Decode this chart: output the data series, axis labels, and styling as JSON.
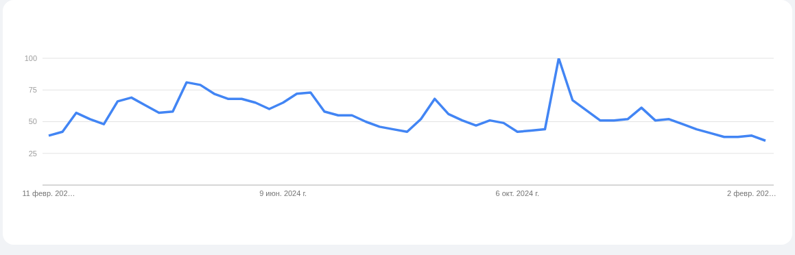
{
  "chart_data": {
    "type": "line",
    "categories": [
      "11 февр. 202…",
      null,
      null,
      null,
      null,
      null,
      null,
      null,
      null,
      null,
      null,
      null,
      null,
      null,
      null,
      null,
      null,
      "9 июн. 2024 г.",
      null,
      null,
      null,
      null,
      null,
      null,
      null,
      null,
      null,
      null,
      null,
      null,
      null,
      null,
      null,
      null,
      "6 окт. 2024 г.",
      null,
      null,
      null,
      null,
      null,
      null,
      null,
      null,
      null,
      null,
      null,
      null,
      null,
      null,
      null,
      null,
      "2 февр. 202…",
      null
    ],
    "series": [
      {
        "color": "#4285f4",
        "values": [
          39,
          42,
          57,
          52,
          48,
          66,
          69,
          63,
          57,
          58,
          81,
          79,
          72,
          68,
          68,
          65,
          60,
          65,
          72,
          73,
          58,
          55,
          55,
          50,
          46,
          44,
          42,
          52,
          68,
          56,
          51,
          47,
          51,
          49,
          42,
          43,
          44,
          100,
          67,
          59,
          51,
          51,
          52,
          61,
          51,
          52,
          48,
          44,
          41,
          38,
          38,
          39,
          35
        ]
      }
    ],
    "ylim": [
      0,
      100
    ],
    "yticks": [
      25,
      50,
      75,
      100
    ],
    "grid": "y",
    "legend": false,
    "marker": "none",
    "line_style": "solid"
  }
}
